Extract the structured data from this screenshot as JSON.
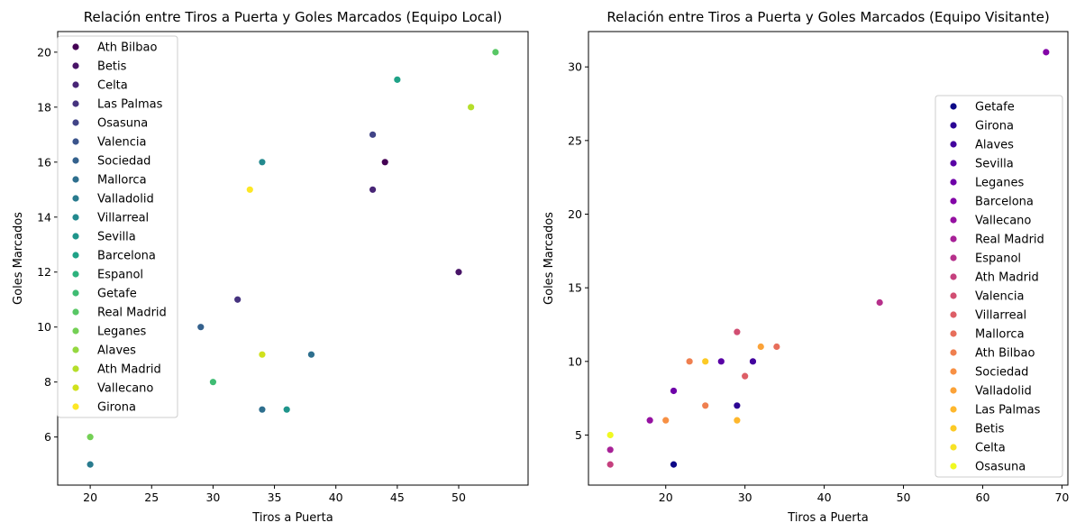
{
  "chart_data": [
    {
      "type": "scatter",
      "title": "Relación entre Tiros a Puerta y Goles Marcados (Equipo Local)",
      "xlabel": "Tiros a Puerta",
      "ylabel": "Goles Marcados",
      "xlim": [
        17.35,
        55.65
      ],
      "ylim": [
        4.25,
        20.75
      ],
      "xticks": [
        20,
        25,
        30,
        35,
        40,
        45,
        50
      ],
      "yticks": [
        6,
        8,
        10,
        12,
        14,
        16,
        18,
        20
      ],
      "legend": "upper-left",
      "grid": false,
      "palette": "viridis",
      "series": [
        {
          "name": "Ath Bilbao",
          "color": "#440154",
          "points": [
            [
              44,
              16
            ]
          ]
        },
        {
          "name": "Betis",
          "color": "#481467",
          "points": [
            [
              50,
              12
            ]
          ]
        },
        {
          "name": "Celta",
          "color": "#482576",
          "points": [
            [
              43,
              15
            ]
          ]
        },
        {
          "name": "Las Palmas",
          "color": "#46337f",
          "points": [
            [
              32,
              11
            ]
          ]
        },
        {
          "name": "Osasuna",
          "color": "#414487",
          "points": [
            [
              43,
              17
            ]
          ]
        },
        {
          "name": "Valencia",
          "color": "#3a548c",
          "points": []
        },
        {
          "name": "Sociedad",
          "color": "#34618d",
          "points": [
            [
              29,
              10
            ]
          ]
        },
        {
          "name": "Mallorca",
          "color": "#2e6f8e",
          "points": [
            [
              34,
              7
            ],
            [
              38,
              9
            ]
          ]
        },
        {
          "name": "Valladolid",
          "color": "#297b8e",
          "points": [
            [
              20,
              5
            ]
          ]
        },
        {
          "name": "Villarreal",
          "color": "#23898e",
          "points": [
            [
              34,
              16
            ]
          ]
        },
        {
          "name": "Sevilla",
          "color": "#1f958b",
          "points": [
            [
              36,
              7
            ]
          ]
        },
        {
          "name": "Barcelona",
          "color": "#1fa287",
          "points": [
            [
              45,
              19
            ]
          ]
        },
        {
          "name": "Espanol",
          "color": "#2db27d",
          "points": []
        },
        {
          "name": "Getafe",
          "color": "#3fbc73",
          "points": [
            [
              30,
              8
            ]
          ]
        },
        {
          "name": "Real Madrid",
          "color": "#58c765",
          "points": [
            [
              53,
              20
            ]
          ]
        },
        {
          "name": "Leganes",
          "color": "#74d055",
          "points": [
            [
              20,
              6
            ]
          ]
        },
        {
          "name": "Alaves",
          "color": "#95d840",
          "points": []
        },
        {
          "name": "Ath Madrid",
          "color": "#b5de2b",
          "points": [
            [
              51,
              18
            ]
          ]
        },
        {
          "name": "Vallecano",
          "color": "#d0e11c",
          "points": [
            [
              34,
              9
            ]
          ]
        },
        {
          "name": "Girona",
          "color": "#fde725",
          "points": [
            [
              33,
              15
            ]
          ]
        }
      ]
    },
    {
      "type": "scatter",
      "title": "Relación entre Tiros a Puerta y Goles Marcados (Equipo Visitante)",
      "xlabel": "Tiros a Puerta",
      "ylabel": "Goles Marcados",
      "xlim": [
        10.25,
        70.75
      ],
      "ylim": [
        1.6,
        32.4
      ],
      "xticks": [
        20,
        30,
        40,
        50,
        60,
        70
      ],
      "yticks": [
        5,
        10,
        15,
        20,
        25,
        30
      ],
      "legend": "center-right",
      "grid": false,
      "palette": "plasma",
      "series": [
        {
          "name": "Getafe",
          "color": "#0d0887",
          "points": [
            [
              21,
              3
            ]
          ]
        },
        {
          "name": "Girona",
          "color": "#2c0594",
          "points": [
            [
              29,
              7
            ]
          ]
        },
        {
          "name": "Alaves",
          "color": "#43039e",
          "points": [
            [
              31,
              10
            ]
          ]
        },
        {
          "name": "Sevilla",
          "color": "#5901a5",
          "points": [
            [
              27,
              10
            ]
          ]
        },
        {
          "name": "Leganes",
          "color": "#6e00a8",
          "points": [
            [
              21,
              8
            ]
          ]
        },
        {
          "name": "Barcelona",
          "color": "#8305a7",
          "points": [
            [
              68,
              31
            ]
          ]
        },
        {
          "name": "Vallecano",
          "color": "#9511a1",
          "points": [
            [
              18,
              6
            ]
          ]
        },
        {
          "name": "Real Madrid",
          "color": "#a72197",
          "points": [
            [
              13,
              4
            ]
          ]
        },
        {
          "name": "Espanol",
          "color": "#b6308b",
          "points": [
            [
              47,
              14
            ]
          ]
        },
        {
          "name": "Ath Madrid",
          "color": "#c5407e",
          "points": [
            [
              13,
              3
            ]
          ]
        },
        {
          "name": "Valencia",
          "color": "#d14e72",
          "points": [
            [
              29,
              12
            ]
          ]
        },
        {
          "name": "Villarreal",
          "color": "#dd5e66",
          "points": [
            [
              30,
              9
            ]
          ]
        },
        {
          "name": "Mallorca",
          "color": "#e76e5b",
          "points": [
            [
              34,
              11
            ]
          ]
        },
        {
          "name": "Ath Bilbao",
          "color": "#ef7f4f",
          "points": [
            [
              23,
              10
            ],
            [
              25,
              7
            ]
          ]
        },
        {
          "name": "Sociedad",
          "color": "#f79044",
          "points": [
            [
              20,
              6
            ]
          ]
        },
        {
          "name": "Valladolid",
          "color": "#fba238",
          "points": [
            [
              32,
              11
            ]
          ]
        },
        {
          "name": "Las Palmas",
          "color": "#feb72d",
          "points": [
            [
              29,
              6
            ]
          ]
        },
        {
          "name": "Betis",
          "color": "#fcca25",
          "points": [
            [
              25,
              10
            ]
          ]
        },
        {
          "name": "Celta",
          "color": "#f7e225",
          "points": []
        },
        {
          "name": "Osasuna",
          "color": "#f0f921",
          "points": [
            [
              13,
              5
            ]
          ]
        }
      ]
    }
  ]
}
